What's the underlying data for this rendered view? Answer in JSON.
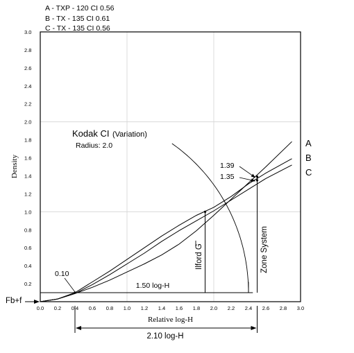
{
  "chart_data": {
    "type": "line",
    "legend_entries": [
      "A - TXP - 120 CI 0.56",
      "B - TX - 135   CI 0.61",
      "C - TX - 135   CI 0.56"
    ],
    "xlabel": "Relative log-H",
    "ylabel": "Density",
    "xlim": [
      0.0,
      3.0
    ],
    "ylim": [
      0.0,
      3.0
    ],
    "x_tick_labels": [
      "0.0",
      "0.2",
      "0.4",
      "0.6",
      "0.8",
      "1.0",
      "1.2",
      "1.4",
      "1.6",
      "1.8",
      "2.0",
      "2.2",
      "2.4",
      "2.6",
      "2.8",
      "3.0"
    ],
    "y_tick_labels": [
      "0.2",
      "0.4",
      "0.6",
      "0.8",
      "1.0",
      "1.2",
      "1.4",
      "1.6",
      "1.8",
      "2.0",
      "2.2",
      "2.4",
      "2.6",
      "2.8",
      "3.0"
    ],
    "grid": "major lines at every 1.0",
    "series": [
      {
        "name": "A",
        "x": [
          0.0,
          0.2,
          0.4,
          0.6,
          0.8,
          1.0,
          1.2,
          1.4,
          1.6,
          1.8,
          2.0,
          2.2,
          2.4,
          2.6,
          2.9
        ],
        "y": [
          0.0,
          0.03,
          0.09,
          0.16,
          0.24,
          0.33,
          0.42,
          0.52,
          0.64,
          0.79,
          0.96,
          1.14,
          1.32,
          1.5,
          1.78
        ]
      },
      {
        "name": "B",
        "x": [
          0.0,
          0.2,
          0.4,
          0.6,
          0.8,
          1.0,
          1.2,
          1.4,
          1.6,
          1.8,
          2.0,
          2.2,
          2.4,
          2.6,
          2.9
        ],
        "y": [
          0.0,
          0.03,
          0.1,
          0.22,
          0.34,
          0.47,
          0.6,
          0.73,
          0.85,
          0.96,
          1.05,
          1.17,
          1.31,
          1.43,
          1.59
        ]
      },
      {
        "name": "C",
        "x": [
          0.0,
          0.2,
          0.4,
          0.6,
          0.8,
          1.0,
          1.2,
          1.4,
          1.6,
          1.8,
          2.0,
          2.2,
          2.4,
          2.6,
          2.9
        ],
        "y": [
          0.0,
          0.03,
          0.09,
          0.19,
          0.3,
          0.42,
          0.54,
          0.67,
          0.79,
          0.9,
          1.01,
          1.13,
          1.25,
          1.37,
          1.52
        ]
      }
    ],
    "series_end_labels": [
      "A",
      "B",
      "C"
    ],
    "annotations": {
      "kodak_title": "Kodak CI",
      "kodak_variation": "(Variation)",
      "radius": "Radius: 2.0",
      "val_139": "1.39",
      "val_135": "1.35",
      "val_010": "0.10",
      "ilford": "Ilford G",
      "zone": "Zone System",
      "range_150": "1.50 log-H",
      "range_210": "2.10 log-H",
      "fbf": "Fb+f"
    },
    "reference_values": {
      "base_density": 0.1,
      "base_logH": 0.4,
      "ilford_logH": 1.9,
      "zone_logH": 2.5,
      "kodak_radius": 2.0,
      "val_139_at": [
        2.5,
        1.39
      ],
      "val_135_at": [
        2.5,
        1.35
      ]
    }
  }
}
